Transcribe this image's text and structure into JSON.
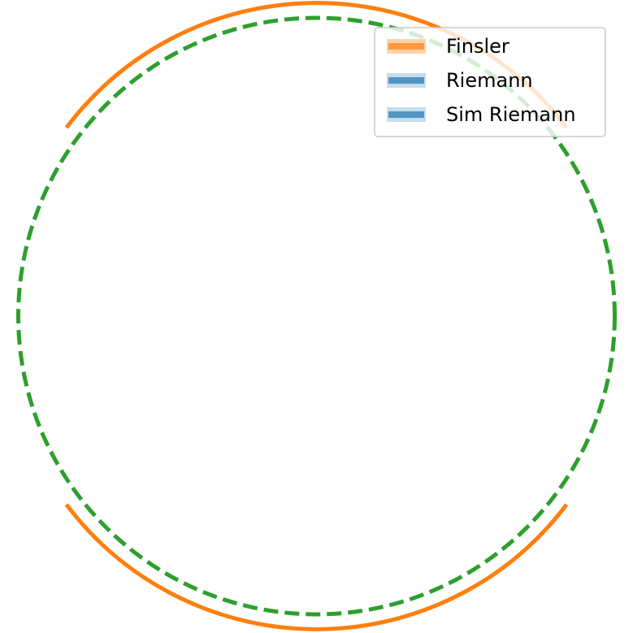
{
  "chart_data": {
    "type": "line",
    "title": "",
    "xlabel": "",
    "ylabel": "",
    "axes_visible": false,
    "grid": false,
    "aspect": "equal",
    "xlim": [
      -1.05,
      1.05
    ],
    "ylim": [
      -1.05,
      1.05
    ],
    "legend": {
      "position": "top-right",
      "entries": [
        "Finsler",
        "Riemann",
        "Sim Riemann"
      ]
    },
    "series": [
      {
        "name": "Finsler",
        "color": "#ff7f0e",
        "style": "solid",
        "radius": 1.05,
        "gaps_center_angles_deg": [
          0,
          180
        ]
      },
      {
        "name": "Riemann",
        "color": "#1f77b4",
        "style": "solid",
        "radius": 1.0,
        "hidden_behind": "Sim Riemann"
      },
      {
        "name": "Sim Riemann",
        "color": "#2ca02c",
        "style": "dashed",
        "radius": 1.0
      }
    ]
  }
}
